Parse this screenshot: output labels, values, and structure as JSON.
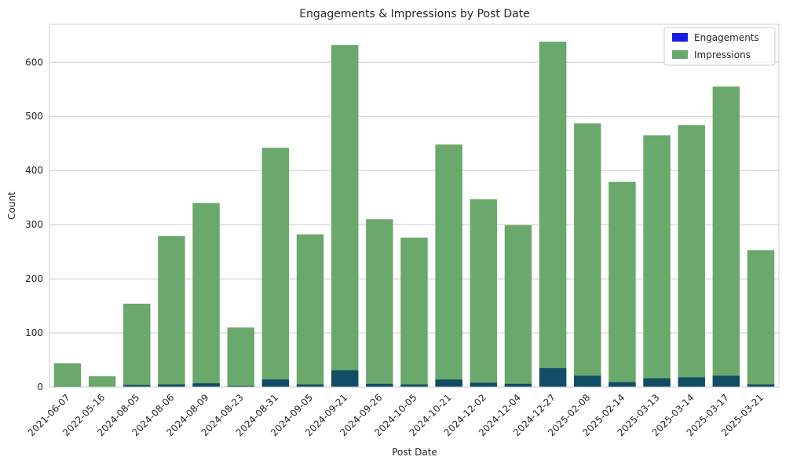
{
  "chart_data": {
    "type": "bar",
    "title": "Engagements & Impressions by Post Date",
    "xlabel": "Post Date",
    "ylabel": "Count",
    "ylim": [
      0,
      670
    ],
    "yticks": [
      0,
      100,
      200,
      300,
      400,
      500,
      600
    ],
    "grid": "horizontal",
    "legend_position": "top-right",
    "categories": [
      "2021-06-07",
      "2022-05-16",
      "2024-08-05",
      "2024-08-06",
      "2024-08-09",
      "2024-08-23",
      "2024-08-31",
      "2024-09-05",
      "2024-09-21",
      "2024-09-26",
      "2024-10-05",
      "2024-10-21",
      "2024-12-02",
      "2024-12-04",
      "2024-12-27",
      "2025-02-08",
      "2025-02-14",
      "2025-03-13",
      "2025-03-14",
      "2025-03-17",
      "2025-03-21"
    ],
    "series": [
      {
        "name": "Engagements",
        "color": "#1a1ae6",
        "overlap_color": "#124d66",
        "values": [
          1,
          0,
          4,
          5,
          7,
          2,
          14,
          5,
          31,
          6,
          5,
          14,
          8,
          6,
          35,
          21,
          9,
          16,
          18,
          21,
          5
        ]
      },
      {
        "name": "Impressions",
        "color": "#6aa86c",
        "values": [
          44,
          20,
          154,
          279,
          340,
          110,
          442,
          282,
          632,
          310,
          276,
          448,
          347,
          299,
          638,
          487,
          379,
          465,
          484,
          555,
          253
        ]
      }
    ]
  }
}
